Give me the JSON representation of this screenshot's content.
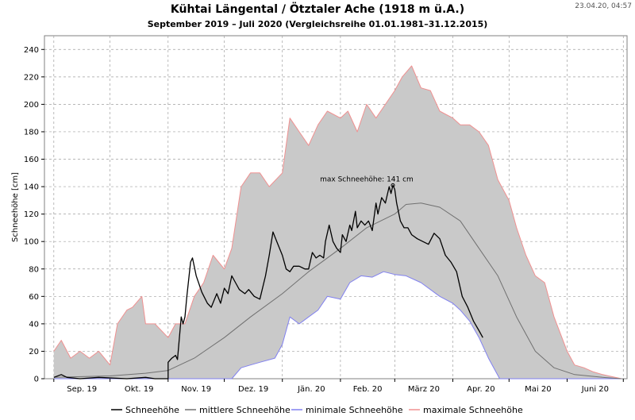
{
  "header": {
    "title": "Kühtai Längental / Ötztaler Ache (1918 m ü.A.)",
    "subtitle": "September 2019 – Juli 2020 (Vergleichsreihe 01.01.1981–31.12.2015)",
    "timestamp": "23.04.20, 04:57"
  },
  "colors": {
    "band_fill": "#c9c9c9",
    "current": "#000000",
    "mean": "#707070",
    "min": "#8080f0",
    "max": "#f09090",
    "grid": "#a0a0a0"
  },
  "chart_data": {
    "type": "line",
    "title": "Kühtai Längental / Ötztaler Ache (1918 m ü.A.)",
    "subtitle": "September 2019 – Juli 2020 (Vergleichsreihe 01.01.1981–31.12.2015)",
    "xlabel": "",
    "ylabel": "Schneehöhe [cm]",
    "ylim": [
      0,
      250
    ],
    "y_ticks": [
      0,
      20,
      40,
      60,
      80,
      100,
      120,
      140,
      160,
      180,
      200,
      220,
      240
    ],
    "x_ticks": [
      "Sep. 19",
      "Okt. 19",
      "Nov. 19",
      "Dez. 19",
      "Jän. 20",
      "Feb. 20",
      "März 20",
      "Apr. 20",
      "Mai 20",
      "Juni 20"
    ],
    "grid": true,
    "legend_position": "bottom",
    "annotation": {
      "text": "max Schneehöhe: 141 cm",
      "date": "2020-02-29",
      "value": 141
    },
    "series": [
      {
        "name": "Schneehöhe",
        "points": [
          [
            "2019-09-01",
            1
          ],
          [
            "2019-09-05",
            3
          ],
          [
            "2019-09-08",
            1
          ],
          [
            "2019-09-15",
            0
          ],
          [
            "2019-09-25",
            1
          ],
          [
            "2019-10-10",
            0
          ],
          [
            "2019-10-20",
            1
          ],
          [
            "2019-10-25",
            0
          ],
          [
            "2019-11-01",
            0
          ],
          [
            "2019-11-01",
            12
          ],
          [
            "2019-11-03",
            15
          ],
          [
            "2019-11-05",
            17
          ],
          [
            "2019-11-06",
            14
          ],
          [
            "2019-11-08",
            45
          ],
          [
            "2019-11-09",
            40
          ],
          [
            "2019-11-10",
            45
          ],
          [
            "2019-11-11",
            60
          ],
          [
            "2019-11-13",
            85
          ],
          [
            "2019-11-14",
            88
          ],
          [
            "2019-11-16",
            75
          ],
          [
            "2019-11-19",
            63
          ],
          [
            "2019-11-22",
            55
          ],
          [
            "2019-11-24",
            52
          ],
          [
            "2019-11-27",
            62
          ],
          [
            "2019-11-29",
            55
          ],
          [
            "2019-12-01",
            66
          ],
          [
            "2019-12-03",
            62
          ],
          [
            "2019-12-05",
            75
          ],
          [
            "2019-12-07",
            70
          ],
          [
            "2019-12-09",
            65
          ],
          [
            "2019-12-12",
            62
          ],
          [
            "2019-12-14",
            65
          ],
          [
            "2019-12-17",
            60
          ],
          [
            "2019-12-20",
            58
          ],
          [
            "2019-12-23",
            75
          ],
          [
            "2019-12-25",
            90
          ],
          [
            "2019-12-27",
            107
          ],
          [
            "2019-12-29",
            100
          ],
          [
            "2020-01-01",
            90
          ],
          [
            "2020-01-03",
            80
          ],
          [
            "2020-01-05",
            78
          ],
          [
            "2020-01-07",
            82
          ],
          [
            "2020-01-10",
            82
          ],
          [
            "2020-01-13",
            80
          ],
          [
            "2020-01-15",
            80
          ],
          [
            "2020-01-17",
            92
          ],
          [
            "2020-01-19",
            88
          ],
          [
            "2020-01-21",
            90
          ],
          [
            "2020-01-23",
            88
          ],
          [
            "2020-01-24",
            100
          ],
          [
            "2020-01-26",
            112
          ],
          [
            "2020-01-28",
            100
          ],
          [
            "2020-01-30",
            95
          ],
          [
            "2020-02-01",
            92
          ],
          [
            "2020-02-02",
            105
          ],
          [
            "2020-02-04",
            100
          ],
          [
            "2020-02-06",
            112
          ],
          [
            "2020-02-07",
            108
          ],
          [
            "2020-02-09",
            122
          ],
          [
            "2020-02-10",
            110
          ],
          [
            "2020-02-12",
            115
          ],
          [
            "2020-02-14",
            112
          ],
          [
            "2020-02-16",
            115
          ],
          [
            "2020-02-18",
            108
          ],
          [
            "2020-02-20",
            128
          ],
          [
            "2020-02-21",
            120
          ],
          [
            "2020-02-23",
            132
          ],
          [
            "2020-02-25",
            128
          ],
          [
            "2020-02-27",
            140
          ],
          [
            "2020-02-28",
            135
          ],
          [
            "2020-02-29",
            141
          ],
          [
            "2020-03-01",
            138
          ],
          [
            "2020-03-02",
            128
          ],
          [
            "2020-03-04",
            115
          ],
          [
            "2020-03-06",
            110
          ],
          [
            "2020-03-08",
            110
          ],
          [
            "2020-03-10",
            105
          ],
          [
            "2020-03-13",
            102
          ],
          [
            "2020-03-16",
            100
          ],
          [
            "2020-03-19",
            98
          ],
          [
            "2020-03-22",
            106
          ],
          [
            "2020-03-25",
            102
          ],
          [
            "2020-03-28",
            90
          ],
          [
            "2020-03-31",
            85
          ],
          [
            "2020-04-03",
            78
          ],
          [
            "2020-04-06",
            60
          ],
          [
            "2020-04-09",
            52
          ],
          [
            "2020-04-12",
            42
          ],
          [
            "2020-04-15",
            35
          ],
          [
            "2020-04-17",
            30
          ]
        ]
      },
      {
        "name": "mittlere Schneehöhe",
        "points": [
          [
            "2019-09-01",
            1
          ],
          [
            "2019-10-01",
            2
          ],
          [
            "2019-10-20",
            4
          ],
          [
            "2019-11-01",
            6
          ],
          [
            "2019-11-15",
            15
          ],
          [
            "2019-12-01",
            30
          ],
          [
            "2019-12-15",
            45
          ],
          [
            "2020-01-01",
            62
          ],
          [
            "2020-01-15",
            78
          ],
          [
            "2020-02-01",
            95
          ],
          [
            "2020-02-15",
            110
          ],
          [
            "2020-03-01",
            120
          ],
          [
            "2020-03-07",
            127
          ],
          [
            "2020-03-15",
            128
          ],
          [
            "2020-03-25",
            125
          ],
          [
            "2020-04-05",
            115
          ],
          [
            "2020-04-15",
            95
          ],
          [
            "2020-04-25",
            75
          ],
          [
            "2020-05-05",
            45
          ],
          [
            "2020-05-15",
            20
          ],
          [
            "2020-05-25",
            8
          ],
          [
            "2020-06-05",
            3
          ],
          [
            "2020-06-20",
            1
          ],
          [
            "2020-06-30",
            0
          ]
        ]
      },
      {
        "name": "minimale Schneehöhe",
        "points": [
          [
            "2019-09-01",
            0
          ],
          [
            "2019-12-05",
            0
          ],
          [
            "2019-12-10",
            8
          ],
          [
            "2019-12-15",
            10
          ],
          [
            "2019-12-20",
            12
          ],
          [
            "2019-12-28",
            15
          ],
          [
            "2020-01-01",
            25
          ],
          [
            "2020-01-05",
            45
          ],
          [
            "2020-01-10",
            40
          ],
          [
            "2020-01-15",
            45
          ],
          [
            "2020-01-20",
            50
          ],
          [
            "2020-01-25",
            60
          ],
          [
            "2020-02-01",
            58
          ],
          [
            "2020-02-06",
            70
          ],
          [
            "2020-02-12",
            75
          ],
          [
            "2020-02-18",
            74
          ],
          [
            "2020-02-24",
            78
          ],
          [
            "2020-03-01",
            76
          ],
          [
            "2020-03-07",
            75
          ],
          [
            "2020-03-15",
            70
          ],
          [
            "2020-03-25",
            60
          ],
          [
            "2020-04-01",
            55
          ],
          [
            "2020-04-05",
            50
          ],
          [
            "2020-04-10",
            42
          ],
          [
            "2020-04-15",
            30
          ],
          [
            "2020-04-20",
            15
          ],
          [
            "2020-04-26",
            0
          ],
          [
            "2020-06-30",
            0
          ]
        ]
      },
      {
        "name": "maximale Schneehöhe",
        "points": [
          [
            "2019-09-01",
            20
          ],
          [
            "2019-09-05",
            28
          ],
          [
            "2019-09-10",
            15
          ],
          [
            "2019-09-15",
            20
          ],
          [
            "2019-09-20",
            15
          ],
          [
            "2019-09-25",
            20
          ],
          [
            "2019-10-01",
            10
          ],
          [
            "2019-10-05",
            40
          ],
          [
            "2019-10-10",
            50
          ],
          [
            "2019-10-13",
            52
          ],
          [
            "2019-10-18",
            60
          ],
          [
            "2019-10-20",
            40
          ],
          [
            "2019-10-25",
            40
          ],
          [
            "2019-11-01",
            30
          ],
          [
            "2019-11-05",
            40
          ],
          [
            "2019-11-10",
            40
          ],
          [
            "2019-11-15",
            60
          ],
          [
            "2019-11-20",
            70
          ],
          [
            "2019-11-25",
            90
          ],
          [
            "2019-12-01",
            80
          ],
          [
            "2019-12-05",
            95
          ],
          [
            "2019-12-10",
            140
          ],
          [
            "2019-12-15",
            150
          ],
          [
            "2019-12-20",
            150
          ],
          [
            "2019-12-25",
            140
          ],
          [
            "2020-01-01",
            150
          ],
          [
            "2020-01-05",
            190
          ],
          [
            "2020-01-10",
            180
          ],
          [
            "2020-01-15",
            170
          ],
          [
            "2020-01-20",
            185
          ],
          [
            "2020-01-25",
            195
          ],
          [
            "2020-02-01",
            190
          ],
          [
            "2020-02-05",
            195
          ],
          [
            "2020-02-10",
            180
          ],
          [
            "2020-02-15",
            200
          ],
          [
            "2020-02-20",
            190
          ],
          [
            "2020-02-25",
            200
          ],
          [
            "2020-03-01",
            210
          ],
          [
            "2020-03-05",
            220
          ],
          [
            "2020-03-10",
            228
          ],
          [
            "2020-03-15",
            212
          ],
          [
            "2020-03-20",
            210
          ],
          [
            "2020-03-25",
            195
          ],
          [
            "2020-04-01",
            190
          ],
          [
            "2020-04-05",
            185
          ],
          [
            "2020-04-10",
            185
          ],
          [
            "2020-04-15",
            180
          ],
          [
            "2020-04-20",
            170
          ],
          [
            "2020-04-25",
            145
          ],
          [
            "2020-05-01",
            130
          ],
          [
            "2020-05-05",
            110
          ],
          [
            "2020-05-10",
            90
          ],
          [
            "2020-05-15",
            75
          ],
          [
            "2020-05-20",
            70
          ],
          [
            "2020-05-25",
            45
          ],
          [
            "2020-06-01",
            20
          ],
          [
            "2020-06-05",
            10
          ],
          [
            "2020-06-10",
            8
          ],
          [
            "2020-06-15",
            5
          ],
          [
            "2020-06-20",
            3
          ],
          [
            "2020-06-30",
            0
          ]
        ]
      }
    ]
  }
}
